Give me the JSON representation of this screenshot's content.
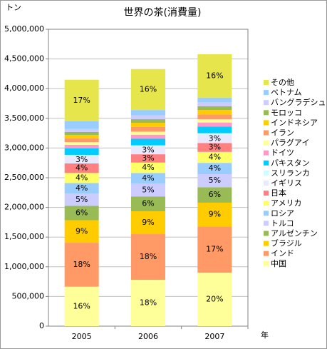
{
  "chart_data": {
    "type": "stacked_bar",
    "title": "世界の茶(消費量)",
    "y_label": "トン",
    "x_label": "年",
    "categories": [
      "2005",
      "2006",
      "2007"
    ],
    "ylim": [
      0,
      5000000
    ],
    "yticks": [
      0,
      {
        "value": 500000,
        "label": "500,000"
      },
      {
        "value": 1000000,
        "label": "1,000,000"
      },
      {
        "value": 1500000,
        "label": "1,500,000"
      },
      {
        "value": 2000000,
        "label": "2,000,000"
      },
      {
        "value": 2500000,
        "label": "2,500,000"
      },
      {
        "value": 3000000,
        "label": "3,000,000"
      },
      {
        "value": 3500000,
        "label": "3,500,000"
      },
      {
        "value": 4000000,
        "label": "4,000,000"
      },
      {
        "value": 4500000,
        "label": "4,500,000"
      },
      {
        "value": 5000000,
        "label": "5,000,000"
      }
    ],
    "grid": true,
    "legend": "right",
    "series": [
      {
        "name": "中国",
        "color": "#ffff99",
        "values": [
          665000,
          780000,
          900000
        ],
        "share_labels": [
          "16%",
          "18%",
          "20%"
        ]
      },
      {
        "name": "インド",
        "color": "#ff9966",
        "values": [
          740000,
          770000,
          780000
        ],
        "share_labels": [
          "18%",
          "18%",
          "17%"
        ]
      },
      {
        "name": "ブラジル",
        "color": "#ffcc00",
        "values": [
          380000,
          385000,
          400000
        ],
        "share_labels": [
          "9%",
          "9%",
          "9%"
        ]
      },
      {
        "name": "アルゼンチン",
        "color": "#99bb55",
        "values": [
          240000,
          250000,
          260000
        ],
        "share_labels": [
          "6%",
          "6%",
          "6%"
        ]
      },
      {
        "name": "トルコ",
        "color": "#ccccff",
        "values": [
          210000,
          215000,
          220000
        ],
        "share_labels": [
          "5%",
          "5%",
          "5%"
        ]
      },
      {
        "name": "ロシア",
        "color": "#99ccff",
        "values": [
          175000,
          180000,
          190000
        ],
        "share_labels": [
          "4%",
          "4%",
          "4%"
        ]
      },
      {
        "name": "アメリカ",
        "color": "#ffff66",
        "values": [
          170000,
          175000,
          185000
        ],
        "share_labels": [
          "4%",
          "4%",
          "4%"
        ]
      },
      {
        "name": "日本",
        "color": "#ff8080",
        "values": [
          160000,
          140000,
          150000
        ],
        "share_labels": [
          "4%",
          "3%",
          "3%"
        ]
      },
      {
        "name": "イギリス",
        "color": "#e8e8ff",
        "values": [
          125000,
          130000,
          145000
        ],
        "share_labels": [
          "3%",
          "3%",
          "3%"
        ]
      },
      {
        "name": "スリランカ",
        "color": "#ccffff",
        "values": [
          20000,
          20000,
          20000
        ],
        "share_labels": [
          null,
          null,
          null
        ]
      },
      {
        "name": "パキスタン",
        "color": "#00ccff",
        "values": [
          110000,
          110000,
          110000
        ],
        "share_labels": [
          null,
          null,
          null
        ]
      },
      {
        "name": "ドイツ",
        "color": "#ff99cc",
        "values": [
          60000,
          70000,
          70000
        ],
        "share_labels": [
          null,
          null,
          null
        ]
      },
      {
        "name": "パラグアイ",
        "color": "#ffff99",
        "values": [
          45000,
          50000,
          55000
        ],
        "share_labels": [
          null,
          null,
          null
        ]
      },
      {
        "name": "イラン",
        "color": "#ff9966",
        "values": [
          60000,
          80000,
          80000
        ],
        "share_labels": [
          null,
          null,
          null
        ]
      },
      {
        "name": "インドネシア",
        "color": "#ffcc00",
        "values": [
          60000,
          70000,
          75000
        ],
        "share_labels": [
          null,
          null,
          null
        ]
      },
      {
        "name": "モロッコ",
        "color": "#99bb55",
        "values": [
          50000,
          60000,
          65000
        ],
        "share_labels": [
          null,
          null,
          null
        ]
      },
      {
        "name": "バングラデシュ",
        "color": "#ccccff",
        "values": [
          50000,
          65000,
          65000
        ],
        "share_labels": [
          null,
          null,
          null
        ]
      },
      {
        "name": "ベトナム",
        "color": "#99ccff",
        "values": [
          130000,
          90000,
          80000
        ],
        "share_labels": [
          null,
          null,
          null
        ]
      },
      {
        "name": "その他",
        "color": "#e6e64c",
        "values": [
          700000,
          690000,
          730000
        ],
        "share_labels": [
          "17%",
          "16%",
          "16%"
        ]
      }
    ]
  }
}
